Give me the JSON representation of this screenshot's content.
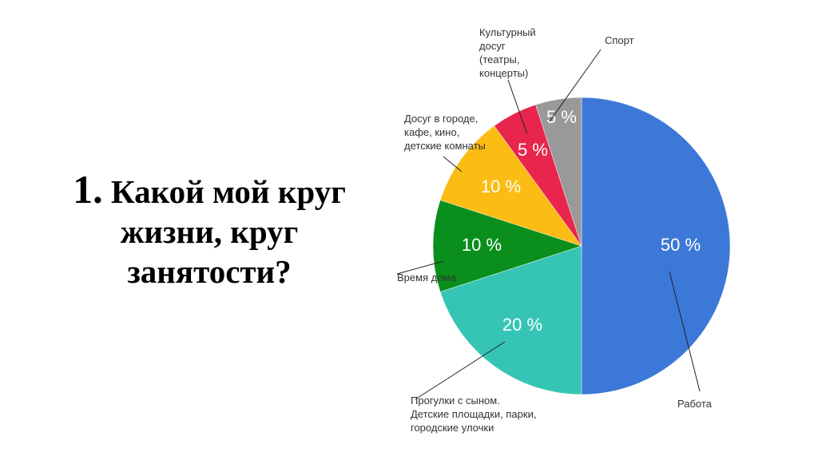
{
  "title": {
    "number": "1.",
    "line1": "Какой мой круг",
    "line2": "жизни, круг",
    "line3": "занятости?"
  },
  "chart_data": {
    "type": "pie",
    "title": "",
    "slices": [
      {
        "label": "Работа",
        "value": 50,
        "value_label": "50 %",
        "color": "#3c78d8"
      },
      {
        "label": "Прогулки с сыном. Детские площадки, парки, городские улочки",
        "value": 20,
        "value_label": "20 %",
        "color": "#36c5b5"
      },
      {
        "label": "Время дома",
        "value": 10,
        "value_label": "10 %",
        "color": "#0a8f1c"
      },
      {
        "label": "Досуг в городе, кафе, кино, детские комнаты",
        "value": 10,
        "value_label": "10 %",
        "color": "#fbbc14"
      },
      {
        "label": "Культурный досуг (театры, концерты)",
        "value": 5,
        "value_label": "5 %",
        "color": "#e8264d"
      },
      {
        "label": "Спорт",
        "value": 5,
        "value_label": "5 %",
        "color": "#999999"
      }
    ]
  }
}
